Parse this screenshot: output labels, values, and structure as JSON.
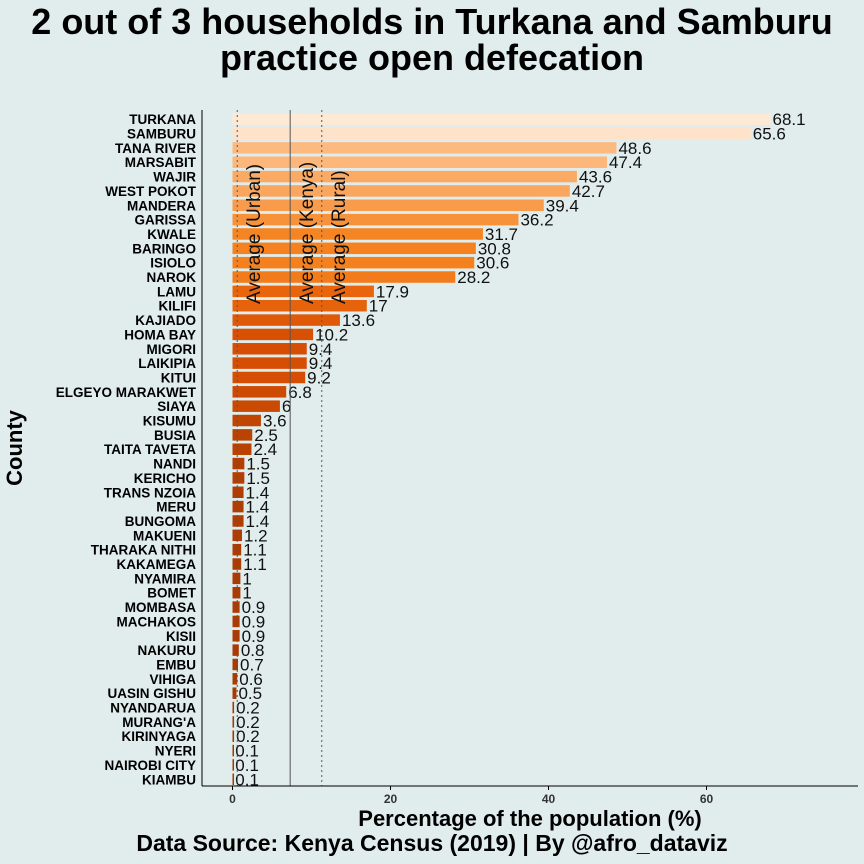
{
  "chart_data": {
    "type": "bar",
    "orientation": "horizontal",
    "title_line1": "2 out of 3 households in Turkana and Samburu",
    "title_line2": "practice open defecation",
    "caption": "Data Source: Kenya Census (2019) | By @afro_dataviz",
    "xlabel": "Percentage of the population (%)",
    "ylabel": "County",
    "xlim": [
      -3.5,
      79
    ],
    "xticks": [
      "0",
      "20",
      "40",
      "60"
    ],
    "xtick_values": [
      0,
      20,
      40,
      60
    ],
    "grid": false,
    "categories": [
      "TURKANA",
      "SAMBURU",
      "TANA RIVER",
      "MARSABIT",
      "WAJIR",
      "WEST POKOT",
      "MANDERA",
      "GARISSA",
      "KWALE",
      "BARINGO",
      "ISIOLO",
      "NAROK",
      "LAMU",
      "KILIFI",
      "KAJIADO",
      "HOMA BAY",
      "MIGORI",
      "LAIKIPIA",
      "KITUI",
      "ELGEYO MARAKWET",
      "SIAYA",
      "KISUMU",
      "BUSIA",
      "TAITA TAVETA",
      "NANDI",
      "KERICHO",
      "TRANS NZOIA",
      "MERU",
      "BUNGOMA",
      "MAKUENI",
      "THARAKA NITHI",
      "KAKAMEGA",
      "NYAMIRA",
      "BOMET",
      "MOMBASA",
      "MACHAKOS",
      "KISII",
      "NAKURU",
      "EMBU",
      "VIHIGA",
      "UASIN GISHU",
      "NYANDARUA",
      "MURANG'A",
      "KIRINYAGA",
      "NYERI",
      "NAIROBI CITY",
      "KIAMBU"
    ],
    "values": [
      68.1,
      65.6,
      48.6,
      47.4,
      43.6,
      42.7,
      39.4,
      36.2,
      31.7,
      30.8,
      30.6,
      28.2,
      17.9,
      17,
      13.6,
      10.2,
      9.4,
      9.4,
      9.2,
      6.8,
      6,
      3.6,
      2.5,
      2.4,
      1.5,
      1.5,
      1.4,
      1.4,
      1.4,
      1.2,
      1.1,
      1.1,
      1,
      1,
      0.9,
      0.9,
      0.9,
      0.8,
      0.7,
      0.6,
      0.5,
      0.2,
      0.2,
      0.2,
      0.1,
      0.1,
      0.1
    ],
    "value_labels": [
      "68.1",
      "65.6",
      "48.6",
      "47.4",
      "43.6",
      "42.7",
      "39.4",
      "36.2",
      "31.7",
      "30.8",
      "30.6",
      "28.2",
      "17.9",
      "17",
      "13.6",
      "10.2",
      "9.4",
      "9.4",
      "9.2",
      "6.8",
      "6",
      "3.6",
      "2.5",
      "2.4",
      "1.5",
      "1.5",
      "1.4",
      "1.4",
      "1.4",
      "1.2",
      "1.1",
      "1.1",
      "1",
      "1",
      "0.9",
      "0.9",
      "0.9",
      "0.8",
      "0.7",
      "0.6",
      "0.5",
      "0.2",
      "0.2",
      "0.2",
      "0.1",
      "0.1",
      "0.1"
    ],
    "color_scale": [
      "#fee9d4",
      "#fdb97d",
      "#f99d4f",
      "#f5821f",
      "#e8650c",
      "#d84f04",
      "#bf4402",
      "#a23703"
    ],
    "color_domain": [
      68,
      48,
      40,
      31,
      18,
      10,
      3,
      0
    ],
    "reference_lines": [
      {
        "name": "Average (Urban)",
        "value": 0.6,
        "style": "dotted"
      },
      {
        "name": "Average (Kenya)",
        "value": 7.3,
        "style": "solid"
      },
      {
        "name": "Average (Rural)",
        "value": 11.3,
        "style": "dotted"
      }
    ]
  }
}
